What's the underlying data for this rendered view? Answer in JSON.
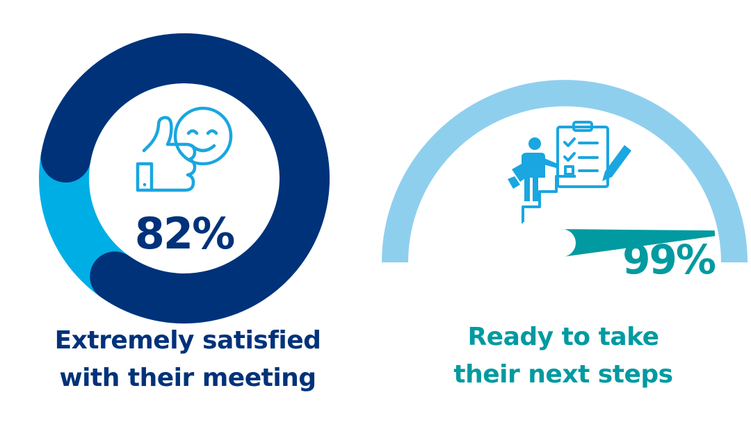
{
  "colors": {
    "navy": "#00327a",
    "sky": "#00aee6",
    "light_blue": "#8fcfee",
    "teal": "#009aa0",
    "icon_blue": "#1aa6e0"
  },
  "icons": {
    "satisfied": "thumbs-up-smiley-icon",
    "next_steps": "person-climbing-stairs-checklist-icon"
  },
  "chart_data": [
    {
      "type": "donut",
      "value": 82,
      "value_label": "82%",
      "caption_lines": [
        "Extremely satisfied",
        "with their meeting"
      ]
    },
    {
      "type": "gauge",
      "value": 99,
      "value_label": "99%",
      "caption_lines": [
        "Ready to take",
        "their next steps"
      ]
    }
  ]
}
